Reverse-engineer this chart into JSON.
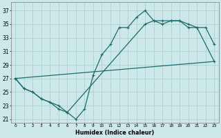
{
  "xlabel": "Humidex (Indice chaleur)",
  "background_color": "#cde8e8",
  "grid_color": "#a8cccc",
  "line_color": "#1a6b6b",
  "xlim": [
    -0.5,
    23.5
  ],
  "ylim": [
    20.5,
    38.2
  ],
  "xticks": [
    0,
    1,
    2,
    3,
    4,
    5,
    6,
    7,
    8,
    9,
    10,
    11,
    12,
    13,
    14,
    15,
    16,
    17,
    18,
    19,
    20,
    21,
    22,
    23
  ],
  "yticks": [
    21,
    23,
    25,
    27,
    29,
    31,
    33,
    35,
    37
  ],
  "line1_x": [
    0,
    1,
    2,
    3,
    4,
    5,
    6,
    7,
    8,
    9,
    10,
    11,
    12,
    13,
    14,
    15,
    16,
    17,
    18,
    19,
    20,
    21,
    22,
    23
  ],
  "line1_y": [
    27,
    25.5,
    25,
    24,
    23.5,
    22.5,
    22,
    21,
    22.5,
    27.5,
    30.5,
    32,
    34.5,
    34.5,
    36,
    37,
    35.5,
    35.5,
    35.5,
    35.5,
    35,
    34.5,
    34.5,
    32
  ],
  "line2_x": [
    0,
    1,
    2,
    3,
    4,
    5,
    6,
    15,
    16,
    17,
    18,
    19,
    20,
    21,
    23
  ],
  "line2_y": [
    27,
    25.5,
    25,
    24,
    23.5,
    23,
    22,
    35,
    35.5,
    35,
    35.5,
    35.5,
    34.5,
    34.5,
    29.5
  ],
  "line3_x": [
    0,
    23
  ],
  "line3_y": [
    27,
    29.5
  ],
  "figsize": [
    3.2,
    2.0
  ],
  "dpi": 100
}
